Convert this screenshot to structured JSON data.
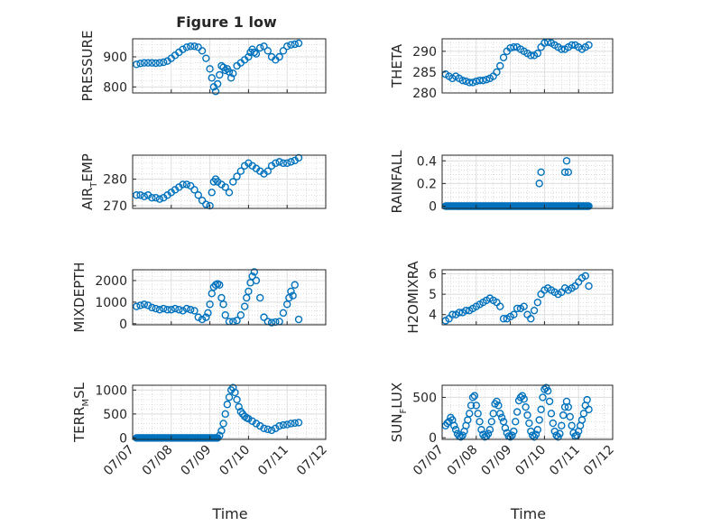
{
  "figure": {
    "title": "Figure 1 low",
    "marker_color": "#0072BD"
  },
  "chart_data": [
    {
      "type": "scatter",
      "ylabel": "PRESSURE",
      "ylim": [
        780,
        960
      ],
      "yticks": [
        800,
        900
      ],
      "xlim": [
        0,
        5
      ],
      "xticks": [
        "07/07",
        "07/08",
        "07/09",
        "07/10",
        "07/11",
        "07/12"
      ],
      "x": [
        0.1,
        0.2,
        0.3,
        0.4,
        0.5,
        0.6,
        0.7,
        0.8,
        0.9,
        1.0,
        1.1,
        1.2,
        1.3,
        1.4,
        1.5,
        1.6,
        1.7,
        1.8,
        1.9,
        2.0,
        2.05,
        2.1,
        2.15,
        2.2,
        2.25,
        2.3,
        2.35,
        2.4,
        2.45,
        2.5,
        2.55,
        2.6,
        2.7,
        2.8,
        2.9,
        3.0,
        3.05,
        3.1,
        3.15,
        3.2,
        3.3,
        3.4,
        3.5,
        3.6,
        3.7,
        3.8,
        3.9,
        4.0,
        4.1,
        4.2,
        4.3
      ],
      "y": [
        875,
        878,
        880,
        880,
        880,
        879,
        880,
        882,
        886,
        895,
        905,
        915,
        925,
        932,
        935,
        935,
        932,
        920,
        895,
        860,
        830,
        800,
        785,
        810,
        840,
        870,
        865,
        855,
        860,
        850,
        830,
        845,
        870,
        880,
        890,
        900,
        915,
        925,
        915,
        910,
        930,
        935,
        920,
        900,
        890,
        900,
        920,
        935,
        940,
        942,
        945
      ]
    },
    {
      "type": "scatter",
      "ylabel": "THETA",
      "ylim": [
        280,
        293
      ],
      "yticks": [
        280,
        285,
        290
      ],
      "xlim": [
        0,
        5
      ],
      "xticks": [
        "07/07",
        "07/08",
        "07/09",
        "07/10",
        "07/11",
        "07/12"
      ],
      "x": [
        0.1,
        0.2,
        0.3,
        0.4,
        0.5,
        0.6,
        0.7,
        0.8,
        0.9,
        1.0,
        1.1,
        1.2,
        1.3,
        1.4,
        1.5,
        1.6,
        1.7,
        1.8,
        1.9,
        2.0,
        2.1,
        2.2,
        2.3,
        2.4,
        2.5,
        2.6,
        2.7,
        2.8,
        2.9,
        3.0,
        3.1,
        3.2,
        3.3,
        3.4,
        3.5,
        3.6,
        3.7,
        3.8,
        3.9,
        4.0,
        4.1,
        4.2,
        4.3
      ],
      "y": [
        284.5,
        284,
        283.5,
        284,
        283.5,
        283,
        282.8,
        282.5,
        282.5,
        282.8,
        283,
        283,
        283.2,
        283.5,
        284,
        285,
        286.5,
        288.5,
        290,
        290.8,
        291,
        291,
        290.5,
        290,
        289.5,
        289,
        289,
        289.5,
        291,
        292,
        292.2,
        292,
        291.5,
        291,
        290.5,
        290.5,
        291,
        291.5,
        291.5,
        291,
        290.5,
        291,
        291.5
      ]
    },
    {
      "type": "scatter",
      "ylabel": "AIR_TEMP",
      "ylabel_main": "AIR",
      "ylabel_sub": "T",
      "ylabel_tail": "EMP",
      "ylim": [
        269,
        289
      ],
      "yticks": [
        270,
        280
      ],
      "xlim": [
        0,
        5
      ],
      "xticks": [
        "07/07",
        "07/08",
        "07/09",
        "07/10",
        "07/11",
        "07/12"
      ],
      "x": [
        0.1,
        0.2,
        0.3,
        0.4,
        0.5,
        0.6,
        0.7,
        0.8,
        0.9,
        1.0,
        1.1,
        1.2,
        1.3,
        1.4,
        1.5,
        1.6,
        1.7,
        1.8,
        1.9,
        2.0,
        2.05,
        2.1,
        2.15,
        2.2,
        2.3,
        2.4,
        2.5,
        2.6,
        2.7,
        2.8,
        2.9,
        3.0,
        3.1,
        3.2,
        3.3,
        3.4,
        3.5,
        3.6,
        3.7,
        3.8,
        3.9,
        4.0,
        4.1,
        4.2,
        4.3
      ],
      "y": [
        274,
        274,
        273.5,
        274,
        273,
        273,
        272.5,
        273,
        274,
        275,
        276,
        277,
        278,
        278,
        277.5,
        276,
        274,
        272,
        270.5,
        270,
        275,
        279,
        280,
        279,
        278,
        277,
        275,
        279,
        281,
        283,
        285,
        286,
        285,
        284,
        283,
        282,
        283,
        285,
        286,
        286.5,
        286,
        286,
        286.5,
        287,
        288
      ]
    },
    {
      "type": "scatter",
      "ylabel": "RAINFALL",
      "ylim": [
        -0.02,
        0.45
      ],
      "yticks": [
        0,
        0.2,
        0.4
      ],
      "ytick_labels": [
        "0",
        "0.2",
        "0.4"
      ],
      "xlim": [
        0,
        5
      ],
      "xticks": [
        "07/07",
        "07/08",
        "07/09",
        "07/10",
        "07/11",
        "07/12"
      ],
      "x": [
        2.85,
        2.9,
        3.6,
        3.65,
        3.7
      ],
      "y": [
        0.2,
        0.3,
        0.3,
        0.4,
        0.3
      ],
      "baseline": {
        "value": 0,
        "x_from": 0.1,
        "x_to": 4.3,
        "step": 0.025
      }
    },
    {
      "type": "scatter",
      "ylabel": "MIXDEPTH",
      "ylim": [
        -50,
        2500
      ],
      "yticks": [
        0,
        1000,
        2000
      ],
      "xlim": [
        0,
        5
      ],
      "xticks": [
        "07/07",
        "07/08",
        "07/09",
        "07/10",
        "07/11",
        "07/12"
      ],
      "x": [
        0.1,
        0.2,
        0.3,
        0.4,
        0.5,
        0.6,
        0.7,
        0.8,
        0.9,
        1.0,
        1.1,
        1.2,
        1.3,
        1.4,
        1.5,
        1.6,
        1.7,
        1.8,
        1.9,
        1.95,
        2.0,
        2.05,
        2.1,
        2.15,
        2.2,
        2.25,
        2.3,
        2.35,
        2.4,
        2.5,
        2.6,
        2.7,
        2.8,
        2.9,
        2.95,
        3.0,
        3.05,
        3.1,
        3.15,
        3.2,
        3.3,
        3.4,
        3.5,
        3.6,
        3.7,
        3.8,
        3.9,
        4.0,
        4.05,
        4.1,
        4.15,
        4.2,
        4.3
      ],
      "y": [
        800,
        850,
        900,
        850,
        750,
        700,
        650,
        700,
        650,
        650,
        700,
        650,
        600,
        700,
        650,
        600,
        300,
        200,
        300,
        500,
        900,
        1400,
        1700,
        1800,
        1850,
        1800,
        1200,
        900,
        400,
        100,
        100,
        150,
        400,
        800,
        1200,
        1500,
        1900,
        2200,
        2400,
        2000,
        1200,
        300,
        100,
        50,
        80,
        100,
        500,
        900,
        1200,
        1500,
        1300,
        1800,
        200
      ]
    },
    {
      "type": "scatter",
      "ylabel": "H2OMIXRA",
      "ylim": [
        3.5,
        6.2
      ],
      "yticks": [
        4,
        5,
        6
      ],
      "xlim": [
        0,
        5
      ],
      "xticks": [
        "07/07",
        "07/08",
        "07/09",
        "07/10",
        "07/11",
        "07/12"
      ],
      "x": [
        0.1,
        0.2,
        0.3,
        0.4,
        0.5,
        0.6,
        0.7,
        0.8,
        0.9,
        1.0,
        1.1,
        1.2,
        1.3,
        1.4,
        1.5,
        1.6,
        1.7,
        1.8,
        1.9,
        2.0,
        2.1,
        2.2,
        2.3,
        2.4,
        2.5,
        2.6,
        2.7,
        2.8,
        2.9,
        3.0,
        3.1,
        3.2,
        3.3,
        3.4,
        3.5,
        3.6,
        3.7,
        3.8,
        3.9,
        4.0,
        4.1,
        4.2,
        4.3
      ],
      "y": [
        3.7,
        3.8,
        4.0,
        4.0,
        4.1,
        4.1,
        4.2,
        4.2,
        4.3,
        4.4,
        4.5,
        4.6,
        4.7,
        4.8,
        4.7,
        4.6,
        4.4,
        3.8,
        3.8,
        3.9,
        4.0,
        4.3,
        4.3,
        4.4,
        4.0,
        3.8,
        4.2,
        4.6,
        5.0,
        5.2,
        5.3,
        5.2,
        5.1,
        5.0,
        5.1,
        5.3,
        5.2,
        5.3,
        5.4,
        5.6,
        5.8,
        5.9,
        5.4
      ]
    },
    {
      "type": "scatter",
      "ylabel": "TERR_MSL",
      "ylabel_main": "TERR",
      "ylabel_sub": "M",
      "ylabel_tail": "SL",
      "ylim": [
        -30,
        1100
      ],
      "yticks": [
        0,
        500,
        1000
      ],
      "xlim": [
        0,
        5
      ],
      "xticks": [
        "07/07",
        "07/08",
        "07/09",
        "07/10",
        "07/11",
        "07/12"
      ],
      "x": [
        2.25,
        2.3,
        2.35,
        2.4,
        2.45,
        2.5,
        2.55,
        2.6,
        2.65,
        2.7,
        2.75,
        2.8,
        2.85,
        2.9,
        2.95,
        3.0,
        3.1,
        3.2,
        3.3,
        3.4,
        3.5,
        3.6,
        3.7,
        3.8,
        3.9,
        4.0,
        4.1,
        4.2,
        4.3
      ],
      "y": [
        50,
        150,
        300,
        500,
        700,
        850,
        1000,
        1050,
        950,
        800,
        650,
        550,
        500,
        450,
        420,
        400,
        350,
        300,
        250,
        200,
        180,
        160,
        200,
        250,
        270,
        280,
        300,
        310,
        320
      ],
      "baseline": {
        "value": 0,
        "x_from": 0.1,
        "x_to": 2.2,
        "step": 0.025
      }
    },
    {
      "type": "scatter",
      "ylabel": "SUN_FLUX",
      "ylabel_main": "SUN",
      "ylabel_sub": "F",
      "ylabel_tail": "LUX",
      "ylim": [
        -20,
        650
      ],
      "yticks": [
        0,
        500
      ],
      "xlim": [
        0,
        5
      ],
      "xticks": [
        "07/07",
        "07/08",
        "07/09",
        "07/10",
        "07/11",
        "07/12"
      ],
      "x": [
        0.1,
        0.15,
        0.2,
        0.25,
        0.3,
        0.35,
        0.4,
        0.45,
        0.5,
        0.55,
        0.6,
        0.65,
        0.7,
        0.75,
        0.8,
        0.85,
        0.9,
        0.95,
        1.0,
        1.05,
        1.1,
        1.15,
        1.2,
        1.25,
        1.3,
        1.35,
        1.4,
        1.45,
        1.5,
        1.55,
        1.6,
        1.65,
        1.7,
        1.75,
        1.8,
        1.85,
        1.9,
        1.95,
        2.0,
        2.05,
        2.1,
        2.15,
        2.2,
        2.25,
        2.3,
        2.35,
        2.4,
        2.45,
        2.5,
        2.55,
        2.6,
        2.65,
        2.7,
        2.75,
        2.8,
        2.85,
        2.9,
        2.95,
        3.0,
        3.05,
        3.1,
        3.15,
        3.2,
        3.25,
        3.3,
        3.35,
        3.4,
        3.45,
        3.5,
        3.55,
        3.6,
        3.65,
        3.7,
        3.75,
        3.8,
        3.85,
        3.9,
        3.95,
        4.0,
        4.05,
        4.1,
        4.15,
        4.2,
        4.25,
        4.3
      ],
      "y": [
        150,
        180,
        200,
        250,
        220,
        150,
        100,
        50,
        20,
        10,
        30,
        80,
        150,
        220,
        300,
        400,
        500,
        520,
        400,
        300,
        200,
        100,
        40,
        10,
        20,
        50,
        100,
        200,
        300,
        420,
        450,
        400,
        300,
        250,
        200,
        120,
        60,
        20,
        10,
        30,
        80,
        200,
        320,
        460,
        500,
        520,
        480,
        380,
        280,
        180,
        80,
        30,
        10,
        40,
        100,
        220,
        350,
        500,
        600,
        620,
        580,
        450,
        300,
        180,
        80,
        30,
        10,
        50,
        150,
        280,
        380,
        450,
        380,
        260,
        150,
        60,
        20,
        30,
        80,
        150,
        220,
        300,
        400,
        470,
        350
      ]
    }
  ]
}
